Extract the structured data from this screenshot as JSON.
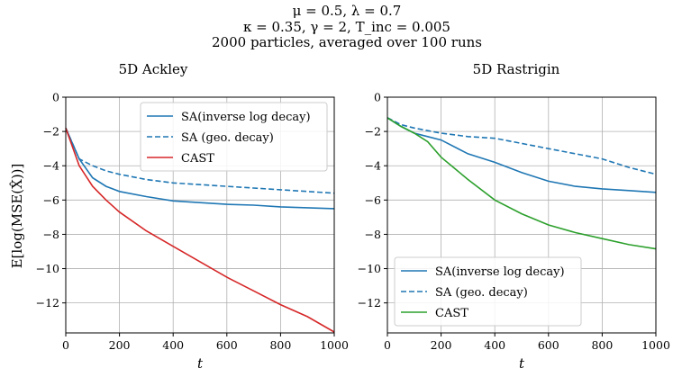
{
  "suptitle": [
    "μ = 0.5, λ = 0.7",
    "κ = 0.35, γ = 2, T_inc = 0.005",
    "2000 particles, averaged over 100 runs"
  ],
  "chart_data": [
    {
      "type": "line",
      "title": "5D Ackley",
      "xlabel": "t",
      "ylabel": "E[log(MSE(X̂))]",
      "xlim": [
        0,
        1000
      ],
      "ylim": [
        -13.75,
        0
      ],
      "xticks": [
        "0",
        "200",
        "400",
        "600",
        "800",
        "1000"
      ],
      "yticks": [
        "0",
        "−2",
        "−4",
        "−6",
        "−8",
        "−10",
        "−12"
      ],
      "grid": true,
      "legend_position": "top-right",
      "x": [
        0,
        50,
        100,
        150,
        200,
        300,
        400,
        500,
        600,
        700,
        800,
        900,
        1000
      ],
      "series": [
        {
          "name": "SA(inverse log decay)",
          "color": "#1f77b4",
          "style": "solid",
          "values": [
            -1.8,
            -3.6,
            -4.7,
            -5.2,
            -5.5,
            -5.8,
            -6.05,
            -6.15,
            -6.25,
            -6.3,
            -6.4,
            -6.45,
            -6.5
          ]
        },
        {
          "name": "SA (geo. decay)",
          "color": "#1f77b4",
          "style": "dashed",
          "values": [
            -1.8,
            -3.6,
            -4.0,
            -4.3,
            -4.5,
            -4.8,
            -5.0,
            -5.1,
            -5.2,
            -5.3,
            -5.4,
            -5.5,
            -5.6
          ]
        },
        {
          "name": "CAST",
          "color": "#d62728",
          "style": "solid",
          "values": [
            -1.8,
            -4.0,
            -5.2,
            -6.0,
            -6.7,
            -7.8,
            -8.7,
            -9.6,
            -10.5,
            -11.3,
            -12.1,
            -12.8,
            -13.7
          ]
        }
      ]
    },
    {
      "type": "line",
      "title": "5D Rastrigin",
      "xlabel": "t",
      "ylabel": "",
      "xlim": [
        0,
        1000
      ],
      "ylim": [
        -13.75,
        0
      ],
      "xticks": [
        "0",
        "200",
        "400",
        "600",
        "800",
        "1000"
      ],
      "yticks": [
        "0",
        "−2",
        "−4",
        "−6",
        "−8",
        "−10",
        "−12"
      ],
      "grid": true,
      "legend_position": "bottom-left",
      "x": [
        0,
        50,
        100,
        150,
        200,
        300,
        400,
        500,
        600,
        700,
        800,
        900,
        1000
      ],
      "series": [
        {
          "name": "SA(inverse log decay)",
          "color": "#1f77b4",
          "style": "solid",
          "values": [
            -1.2,
            -1.7,
            -2.1,
            -2.3,
            -2.5,
            -3.3,
            -3.8,
            -4.4,
            -4.9,
            -5.2,
            -5.35,
            -5.45,
            -5.55
          ]
        },
        {
          "name": "SA (geo. decay)",
          "color": "#1f77b4",
          "style": "dashed",
          "values": [
            -1.2,
            -1.6,
            -1.8,
            -1.95,
            -2.1,
            -2.3,
            -2.4,
            -2.7,
            -3.0,
            -3.3,
            -3.6,
            -4.1,
            -4.5
          ]
        },
        {
          "name": "CAST",
          "color": "#2ca02c",
          "style": "solid",
          "values": [
            -1.2,
            -1.7,
            -2.1,
            -2.6,
            -3.5,
            -4.8,
            -6.0,
            -6.8,
            -7.45,
            -7.9,
            -8.25,
            -8.6,
            -8.85
          ]
        }
      ]
    }
  ]
}
